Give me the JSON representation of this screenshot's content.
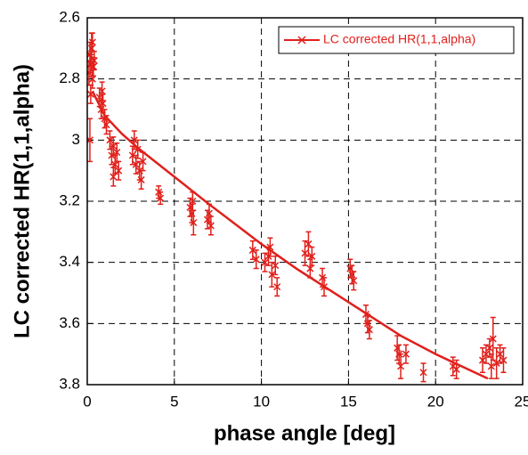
{
  "chart_data": {
    "type": "scatter",
    "x_label": "phase angle [deg]",
    "y_label": "LC corrected HR(1,1,alpha)",
    "xlim": [
      0,
      25
    ],
    "xticks": [
      0,
      5,
      10,
      15,
      20,
      25
    ],
    "ylim": [
      2.6,
      3.8
    ],
    "yticks": [
      2.6,
      2.8,
      3,
      3.2,
      3.4,
      3.6,
      3.8
    ],
    "y_inverted": true,
    "grid": true,
    "legend": "top-right",
    "series": [
      {
        "name": "LC corrected HR(1,1,alpha)",
        "color": "#e0201b",
        "x": [
          0.1,
          0.15,
          0.2,
          0.25,
          0.3,
          0.35,
          0.2,
          0.15,
          0.4,
          0.3,
          0.7,
          0.8,
          0.9,
          1.0,
          1.1,
          0.85,
          1.3,
          1.4,
          1.5,
          1.6,
          1.7,
          1.8,
          1.5,
          2.6,
          2.8,
          3.0,
          3.2,
          2.9,
          3.1,
          2.7,
          4.1,
          4.2,
          5.9,
          6.0,
          6.1,
          6.05,
          6.9,
          7.0,
          7.1,
          9.5,
          9.7,
          10.2,
          10.4,
          10.6,
          10.8,
          10.5,
          10.9,
          12.5,
          12.7,
          12.9,
          12.8,
          13.5,
          13.6,
          15.1,
          15.2,
          15.3,
          16.0,
          16.1,
          16.2,
          17.8,
          17.9,
          18.0,
          18.3,
          19.3,
          21.0,
          21.2,
          22.7,
          22.9,
          23.1,
          23.2,
          23.5,
          23.7,
          23.9,
          23.3
        ],
        "values": [
          2.78,
          2.72,
          2.75,
          2.7,
          2.8,
          2.76,
          2.85,
          3.0,
          2.74,
          2.68,
          2.86,
          2.9,
          2.88,
          2.93,
          2.95,
          2.84,
          3.0,
          3.05,
          3.02,
          3.08,
          3.04,
          3.1,
          3.12,
          3.05,
          3.08,
          3.1,
          3.07,
          3.03,
          3.13,
          3.0,
          3.17,
          3.19,
          3.22,
          3.24,
          3.27,
          3.2,
          3.26,
          3.24,
          3.28,
          3.36,
          3.39,
          3.4,
          3.38,
          3.44,
          3.41,
          3.35,
          3.48,
          3.37,
          3.34,
          3.38,
          3.42,
          3.45,
          3.48,
          3.42,
          3.44,
          3.46,
          3.57,
          3.6,
          3.62,
          3.68,
          3.7,
          3.74,
          3.7,
          3.76,
          3.74,
          3.75,
          3.72,
          3.7,
          3.68,
          3.74,
          3.73,
          3.7,
          3.72,
          3.65
        ],
        "errors": [
          0.04,
          0.04,
          0.03,
          0.05,
          0.03,
          0.03,
          0.03,
          0.07,
          0.03,
          0.03,
          0.03,
          0.03,
          0.03,
          0.03,
          0.03,
          0.03,
          0.03,
          0.03,
          0.03,
          0.03,
          0.03,
          0.03,
          0.03,
          0.03,
          0.03,
          0.03,
          0.03,
          0.03,
          0.03,
          0.03,
          0.02,
          0.02,
          0.03,
          0.03,
          0.04,
          0.03,
          0.03,
          0.03,
          0.03,
          0.03,
          0.03,
          0.03,
          0.03,
          0.04,
          0.03,
          0.03,
          0.03,
          0.04,
          0.04,
          0.03,
          0.03,
          0.03,
          0.03,
          0.03,
          0.03,
          0.03,
          0.03,
          0.03,
          0.03,
          0.04,
          0.03,
          0.04,
          0.03,
          0.03,
          0.03,
          0.03,
          0.04,
          0.03,
          0.03,
          0.04,
          0.05,
          0.03,
          0.04,
          0.07
        ],
        "fit": {
          "x": [
            0.3,
            1,
            2,
            3,
            5,
            7,
            10,
            12,
            15,
            18,
            20,
            23
          ],
          "values": [
            2.84,
            2.92,
            2.98,
            3.03,
            3.12,
            3.21,
            3.34,
            3.42,
            3.53,
            3.64,
            3.7,
            3.78
          ]
        }
      }
    ]
  }
}
